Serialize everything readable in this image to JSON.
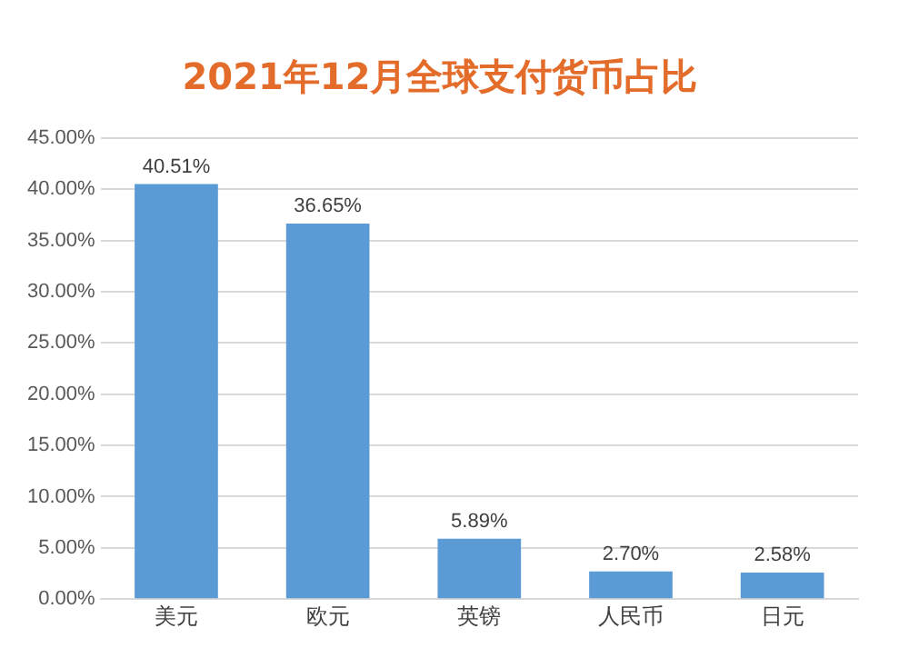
{
  "chart_data": {
    "type": "bar",
    "title": "2021年12月全球支付货币占比",
    "categories": [
      "美元",
      "欧元",
      "英镑",
      "人民币",
      "日元"
    ],
    "values": [
      40.51,
      36.65,
      5.89,
      2.7,
      2.58
    ],
    "value_labels": [
      "40.51%",
      "36.65%",
      "5.89%",
      "2.70%",
      "2.58%"
    ],
    "color": "#5b9bd5",
    "ylim": [
      0,
      45
    ],
    "yticks": [
      {
        "value": 0,
        "label": "0.00%"
      },
      {
        "value": 5,
        "label": "5.00%"
      },
      {
        "value": 10,
        "label": "10.00%"
      },
      {
        "value": 15,
        "label": "15.00%"
      },
      {
        "value": 20,
        "label": "20.00%"
      },
      {
        "value": 25,
        "label": "25.00%"
      },
      {
        "value": 30,
        "label": "30.00%"
      },
      {
        "value": 35,
        "label": "35.00%"
      },
      {
        "value": 40,
        "label": "40.00%"
      },
      {
        "value": 45,
        "label": "45.00%"
      }
    ],
    "grid": "y",
    "legend": false
  }
}
